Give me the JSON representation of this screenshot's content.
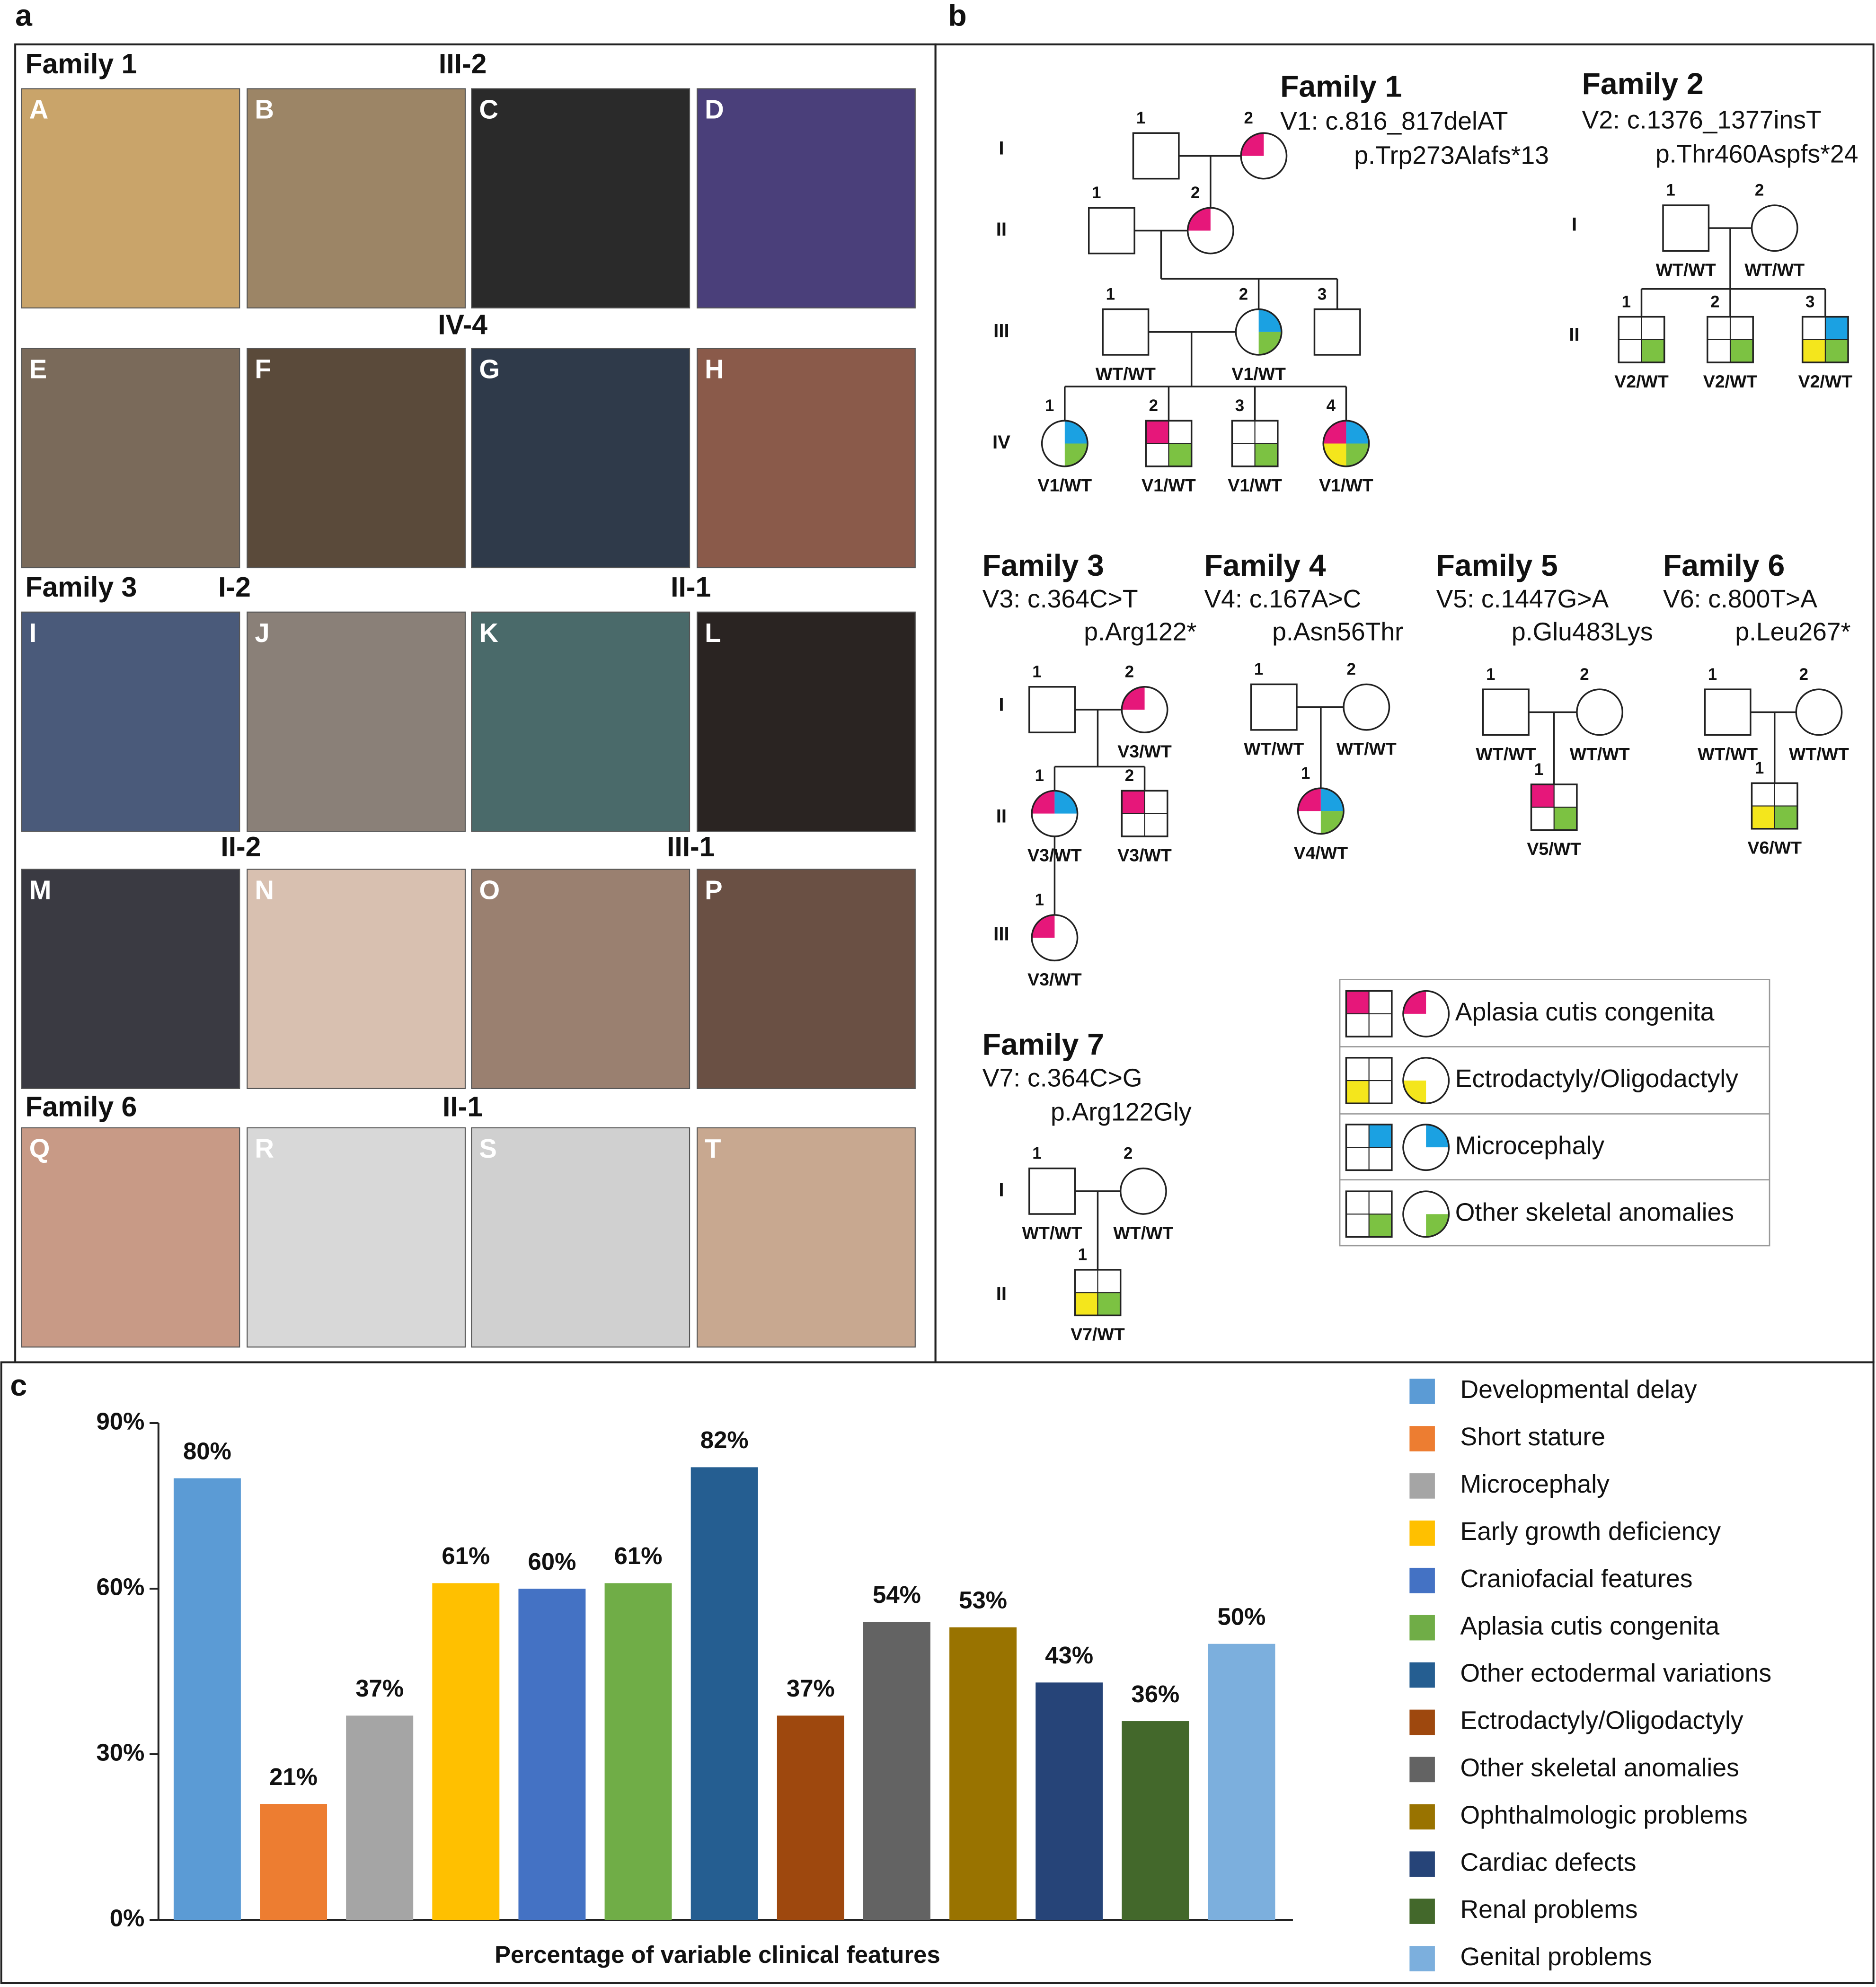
{
  "panel_labels": [
    "a",
    "b",
    "c"
  ],
  "panel_a": {
    "headings": [
      "Family 1",
      "III-2",
      "IV-4",
      "Family 3",
      "I-2",
      "II-1",
      "II-2",
      "III-1",
      "Family 6",
      "II-1"
    ],
    "photo_labels": [
      "A",
      "B",
      "C",
      "D",
      "E",
      "F",
      "G",
      "H",
      "I",
      "J",
      "K",
      "L",
      "M",
      "N",
      "O",
      "P",
      "Q",
      "R",
      "S",
      "T"
    ]
  },
  "panel_b": {
    "families": [
      {
        "title": "Family 1",
        "variant": "V1: c.816_817delAT",
        "protein": "p.Trp273Alafs*13",
        "generations": [
          "I",
          "II",
          "III",
          "IV"
        ],
        "members": [
          {
            "number": "1"
          },
          {
            "number": "2"
          },
          {
            "number": "1"
          },
          {
            "number": "2"
          },
          {
            "number": "1",
            "genotype": "WT/WT"
          },
          {
            "number": "2",
            "genotype": "V1/WT"
          },
          {
            "number": "3"
          },
          {
            "number": "1",
            "genotype": "V1/WT"
          },
          {
            "number": "2",
            "genotype": "V1/WT"
          },
          {
            "number": "3",
            "genotype": "V1/WT"
          },
          {
            "number": "4",
            "genotype": "V1/WT"
          }
        ]
      },
      {
        "title": "Family 2",
        "variant": "V2: c.1376_1377insT",
        "protein": "p.Thr460Aspfs*24",
        "generations": [
          "I",
          "II"
        ],
        "members": [
          {
            "number": "1",
            "genotype": "WT/WT"
          },
          {
            "number": "2",
            "genotype": "WT/WT"
          },
          {
            "number": "1",
            "genotype": "V2/WT"
          },
          {
            "number": "2",
            "genotype": "V2/WT"
          },
          {
            "number": "3",
            "genotype": "V2/WT"
          }
        ]
      },
      {
        "title": "Family 3",
        "variant": "V3: c.364C>T",
        "protein": "p.Arg122*",
        "generations": [
          "I",
          "II",
          "III"
        ],
        "members": [
          {
            "number": "1"
          },
          {
            "number": "2",
            "genotype": "V3/WT"
          },
          {
            "number": "1",
            "genotype": "V3/WT"
          },
          {
            "number": "2",
            "genotype": "V3/WT"
          },
          {
            "number": "1",
            "genotype": "V3/WT"
          }
        ]
      },
      {
        "title": "Family 4",
        "variant": "V4: c.167A>C",
        "protein": "p.Asn56Thr",
        "members": [
          {
            "number": "1",
            "genotype": "WT/WT"
          },
          {
            "number": "2",
            "genotype": "WT/WT"
          },
          {
            "number": "1",
            "genotype": "V4/WT"
          }
        ]
      },
      {
        "title": "Family 5",
        "variant": "V5: c.1447G>A",
        "protein": "p.Glu483Lys",
        "members": [
          {
            "number": "1",
            "genotype": "WT/WT"
          },
          {
            "number": "2",
            "genotype": "WT/WT"
          },
          {
            "number": "1",
            "genotype": "V5/WT"
          }
        ]
      },
      {
        "title": "Family 6",
        "variant": "V6: c.800T>A",
        "protein": "p.Leu267*",
        "members": [
          {
            "number": "1",
            "genotype": "WT/WT"
          },
          {
            "number": "2",
            "genotype": "WT/WT"
          },
          {
            "number": "1",
            "genotype": "V6/WT"
          }
        ]
      },
      {
        "title": "Family 7",
        "variant": "V7: c.364C>G",
        "protein": "p.Arg122Gly",
        "generations": [
          "I",
          "II"
        ],
        "members": [
          {
            "number": "1",
            "genotype": "WT/WT"
          },
          {
            "number": "2",
            "genotype": "WT/WT"
          },
          {
            "number": "1",
            "genotype": "V7/WT"
          }
        ]
      }
    ],
    "legend": [
      {
        "name": "Aplasia cutis congenita",
        "color": "#e6177a"
      },
      {
        "name": "Ectrodactyly/Oligodactyly",
        "color": "#f4e61c"
      },
      {
        "name": "Microcephaly",
        "color": "#1ba1e2"
      },
      {
        "name": "Other skeletal anomalies",
        "color": "#7cc242"
      }
    ]
  },
  "chart_data": {
    "type": "bar",
    "xlabel": "Percentage of variable clinical features",
    "categories": [
      "Developmental delay",
      "Short stature",
      "Microcephaly",
      "Early growth deficiency",
      "Craniofacial features",
      "Aplasia cutis congenita",
      "Other ectodermal variations",
      "Ectrodactyly/Oligodactyly",
      "Other skeletal anomalies",
      "Ophthalmologic problems",
      "Cardiac defects",
      "Renal problems",
      "Genital problems"
    ],
    "values": [
      80,
      21,
      37,
      61,
      60,
      61,
      82,
      37,
      54,
      53,
      43,
      36,
      50
    ],
    "value_labels": [
      "80%",
      "21%",
      "37%",
      "61%",
      "60%",
      "61%",
      "82%",
      "37%",
      "54%",
      "53%",
      "43%",
      "36%",
      "50%"
    ],
    "colors": [
      "#5b9bd5",
      "#ed7d31",
      "#a5a5a5",
      "#ffc000",
      "#4472c4",
      "#70ad47",
      "#255e91",
      "#9e480e",
      "#636363",
      "#997300",
      "#264478",
      "#43682b",
      "#7cafdd"
    ],
    "ylim": [
      0,
      90
    ],
    "yticks": [
      {
        "value": 0,
        "label": "0%"
      },
      {
        "value": 30,
        "label": "30%"
      },
      {
        "value": 60,
        "label": "60%"
      },
      {
        "value": 90,
        "label": "90%"
      }
    ],
    "legend": "right"
  }
}
